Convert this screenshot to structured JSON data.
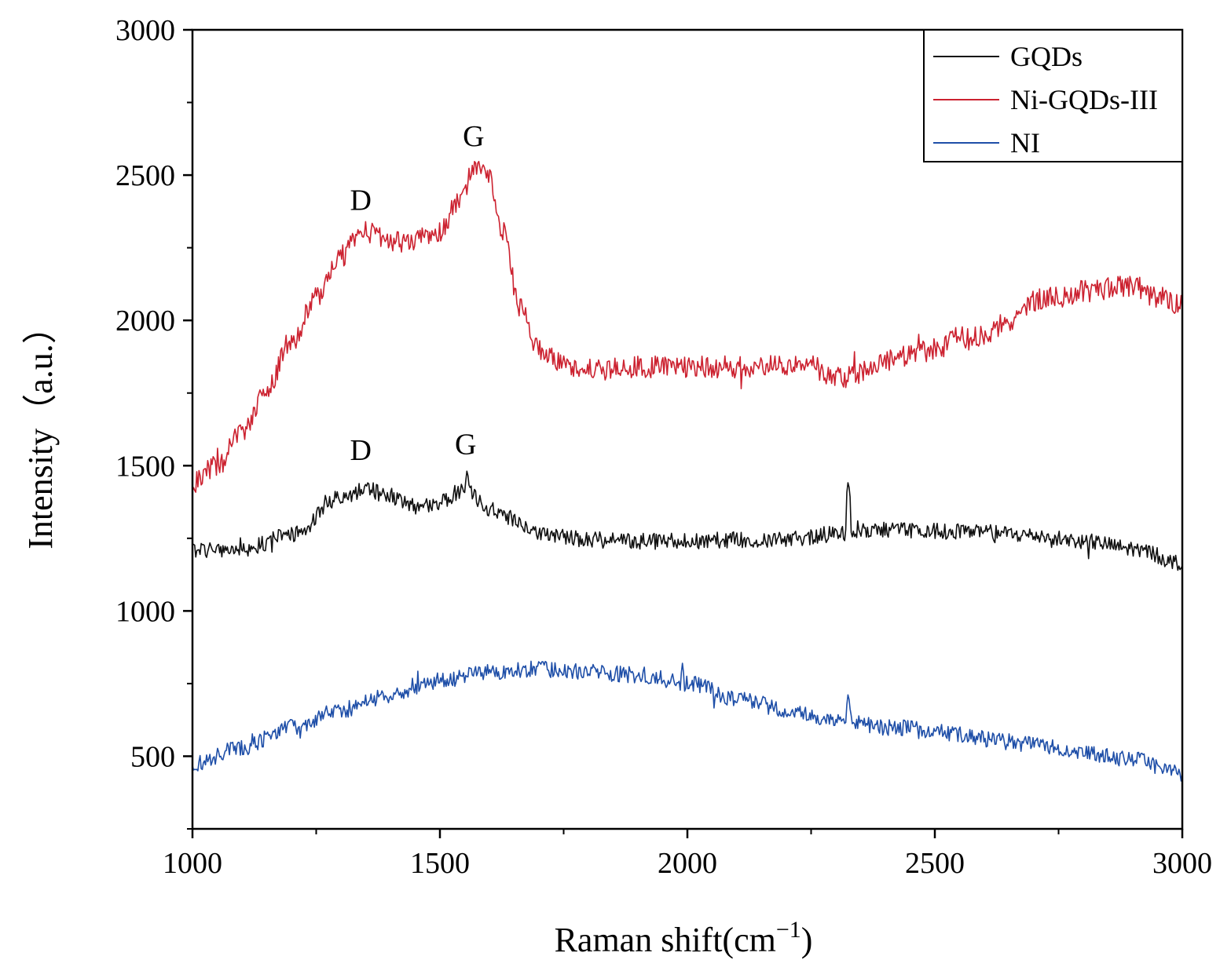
{
  "chart_data": {
    "type": "line",
    "title": "",
    "xlabel": "Raman shift(cm",
    "xlabel_superscript": "−1",
    "xlabel_suffix": ")",
    "ylabel": "Intensity（a.u.）",
    "xlim": [
      1000,
      3000
    ],
    "ylim": [
      250,
      3000
    ],
    "x_ticks": [
      1000,
      1500,
      2000,
      2500,
      3000
    ],
    "y_ticks": [
      500,
      1000,
      1500,
      2000,
      2500,
      3000
    ],
    "grid": false,
    "legend_position": "top-right",
    "series": [
      {
        "name": "GQDs",
        "color": "#111111",
        "noise": 28,
        "points": [
          [
            1000,
            1210
          ],
          [
            1100,
            1215
          ],
          [
            1200,
            1260
          ],
          [
            1300,
            1390
          ],
          [
            1350,
            1420
          ],
          [
            1400,
            1395
          ],
          [
            1450,
            1360
          ],
          [
            1500,
            1375
          ],
          [
            1550,
            1420
          ],
          [
            1600,
            1350
          ],
          [
            1700,
            1270
          ],
          [
            1800,
            1245
          ],
          [
            1900,
            1240
          ],
          [
            2000,
            1240
          ],
          [
            2100,
            1245
          ],
          [
            2200,
            1245
          ],
          [
            2300,
            1265
          ],
          [
            2400,
            1280
          ],
          [
            2500,
            1275
          ],
          [
            2600,
            1270
          ],
          [
            2700,
            1260
          ],
          [
            2800,
            1240
          ],
          [
            2900,
            1215
          ],
          [
            3000,
            1165
          ]
        ],
        "spikes": [
          [
            2325,
            1450
          ],
          [
            1555,
            1490
          ]
        ]
      },
      {
        "name": "Ni-GQDs-III",
        "color": "#cc2230",
        "noise": 38,
        "points": [
          [
            1000,
            1440
          ],
          [
            1050,
            1500
          ],
          [
            1100,
            1620
          ],
          [
            1150,
            1760
          ],
          [
            1200,
            1930
          ],
          [
            1250,
            2080
          ],
          [
            1300,
            2220
          ],
          [
            1340,
            2310
          ],
          [
            1380,
            2290
          ],
          [
            1420,
            2270
          ],
          [
            1460,
            2280
          ],
          [
            1500,
            2300
          ],
          [
            1540,
            2420
          ],
          [
            1575,
            2540
          ],
          [
            1600,
            2490
          ],
          [
            1630,
            2300
          ],
          [
            1660,
            2050
          ],
          [
            1700,
            1900
          ],
          [
            1750,
            1850
          ],
          [
            1800,
            1830
          ],
          [
            1900,
            1840
          ],
          [
            2000,
            1840
          ],
          [
            2100,
            1840
          ],
          [
            2200,
            1850
          ],
          [
            2250,
            1840
          ],
          [
            2300,
            1800
          ],
          [
            2350,
            1820
          ],
          [
            2400,
            1860
          ],
          [
            2450,
            1880
          ],
          [
            2500,
            1900
          ],
          [
            2550,
            1940
          ],
          [
            2600,
            1950
          ],
          [
            2650,
            2000
          ],
          [
            2700,
            2070
          ],
          [
            2750,
            2080
          ],
          [
            2800,
            2100
          ],
          [
            2850,
            2110
          ],
          [
            2900,
            2120
          ],
          [
            2950,
            2080
          ],
          [
            3000,
            2050
          ]
        ],
        "spikes": []
      },
      {
        "name": "NI",
        "color": "#1f4fa8",
        "noise": 28,
        "points": [
          [
            1000,
            470
          ],
          [
            1100,
            530
          ],
          [
            1200,
            600
          ],
          [
            1300,
            660
          ],
          [
            1400,
            710
          ],
          [
            1500,
            760
          ],
          [
            1600,
            790
          ],
          [
            1700,
            800
          ],
          [
            1800,
            790
          ],
          [
            1900,
            780
          ],
          [
            2000,
            750
          ],
          [
            2100,
            700
          ],
          [
            2200,
            660
          ],
          [
            2300,
            620
          ],
          [
            2400,
            600
          ],
          [
            2500,
            590
          ],
          [
            2600,
            560
          ],
          [
            2700,
            540
          ],
          [
            2800,
            510
          ],
          [
            2900,
            490
          ],
          [
            3000,
            440
          ]
        ],
        "spikes": [
          [
            2325,
            720
          ],
          [
            1990,
            820
          ]
        ]
      }
    ],
    "annotations": [
      {
        "text": "D",
        "x": 1340,
        "y": 2380
      },
      {
        "text": "G",
        "x": 1568,
        "y": 2600
      },
      {
        "text": "D",
        "x": 1340,
        "y": 1520
      },
      {
        "text": "G",
        "x": 1552,
        "y": 1540
      }
    ]
  }
}
